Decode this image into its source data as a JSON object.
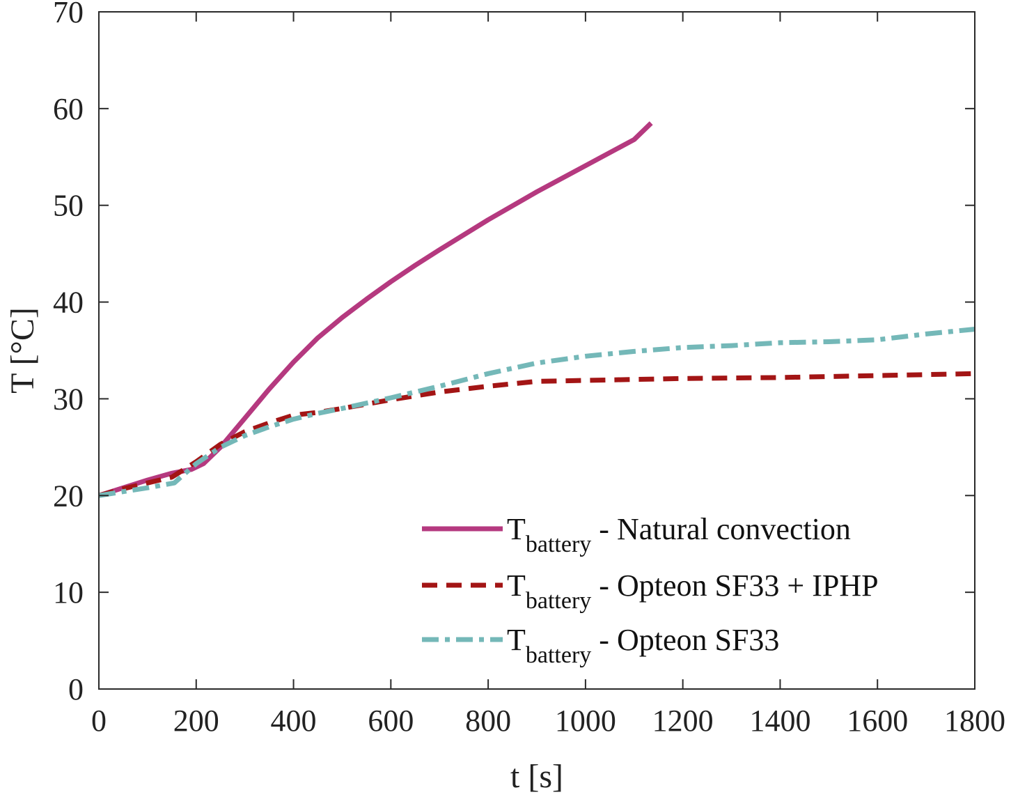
{
  "chart_data": {
    "type": "line",
    "xlabel": "t [s]",
    "ylabel": "T [°C]",
    "xlim": [
      0,
      1800
    ],
    "ylim": [
      0,
      70
    ],
    "xticks": [
      0,
      200,
      400,
      600,
      800,
      1000,
      1200,
      1400,
      1600,
      1800
    ],
    "yticks": [
      0,
      10,
      20,
      30,
      40,
      50,
      60,
      70
    ],
    "grid": false,
    "box": true,
    "legend_position": "bottom-right",
    "series": [
      {
        "name_main": "T",
        "name_sub": "battery",
        "name_rest": " - Natural convection",
        "color": "#b5397f",
        "style": "solid",
        "x": [
          0,
          50,
          100,
          150,
          190,
          215,
          250,
          300,
          350,
          400,
          450,
          500,
          550,
          600,
          650,
          700,
          800,
          900,
          1000,
          1100,
          1135
        ],
        "y": [
          20,
          20.8,
          21.6,
          22.3,
          22.7,
          23.3,
          25.0,
          28.0,
          31.0,
          33.8,
          36.3,
          38.4,
          40.3,
          42.1,
          43.8,
          45.4,
          48.5,
          51.4,
          54.1,
          56.8,
          58.5
        ]
      },
      {
        "name_main": "T",
        "name_sub": "battery",
        "name_rest": " - Opteon SF33 + IPHP",
        "color": "#a31515",
        "style": "dashed",
        "x": [
          0,
          50,
          100,
          150,
          200,
          250,
          300,
          350,
          400,
          450,
          500,
          600,
          700,
          800,
          900,
          1000,
          1200,
          1400,
          1600,
          1800
        ],
        "y": [
          20,
          20.7,
          21.3,
          21.9,
          23.5,
          25.3,
          26.6,
          27.5,
          28.3,
          28.6,
          29.0,
          29.9,
          30.7,
          31.3,
          31.8,
          31.9,
          32.1,
          32.2,
          32.4,
          32.6
        ]
      },
      {
        "name_main": "T",
        "name_sub": "battery",
        "name_rest": " - Opteon SF33",
        "color": "#74b8b8",
        "style": "dashdot",
        "x": [
          0,
          50,
          100,
          155,
          200,
          250,
          300,
          350,
          400,
          450,
          500,
          600,
          700,
          800,
          900,
          1000,
          1100,
          1200,
          1300,
          1400,
          1500,
          1600,
          1700,
          1800
        ],
        "y": [
          20,
          20.4,
          20.8,
          21.3,
          23.3,
          25.0,
          26.2,
          27.1,
          27.9,
          28.5,
          29.0,
          30.1,
          31.3,
          32.6,
          33.7,
          34.4,
          34.9,
          35.3,
          35.5,
          35.8,
          35.9,
          36.1,
          36.7,
          37.2
        ]
      }
    ]
  }
}
